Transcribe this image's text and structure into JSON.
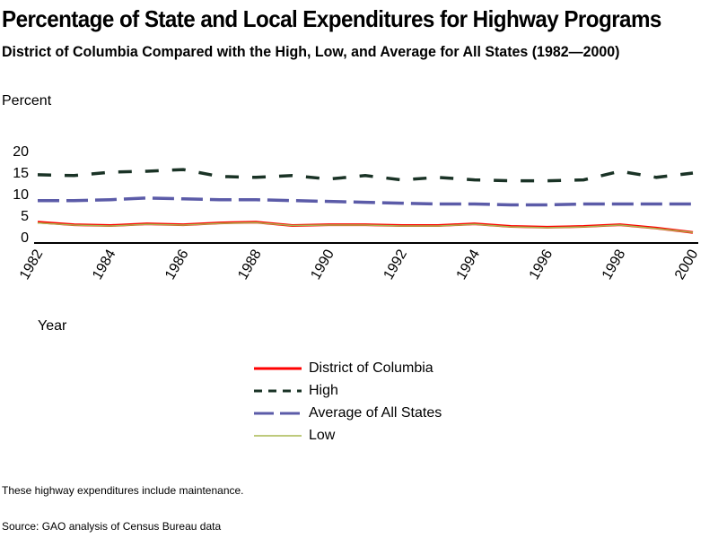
{
  "title": "Percentage of State and Local Expenditures for Highway Programs",
  "subtitle": "District of Columbia Compared with the High, Low, and Average for All States (1982—2000)",
  "note": "These highway expenditures include maintenance.",
  "source": "Source: GAO analysis of Census Bureau data",
  "chart_data": {
    "type": "line",
    "title": "Percentage of State and Local Expenditures for Highway Programs",
    "subtitle": "District of Columbia Compared with the High, Low, and Average for All States (1982—2000)",
    "xlabel": "Year",
    "ylabel": "Percent",
    "ylim": [
      0,
      20
    ],
    "yticks": [
      0,
      5,
      10,
      15,
      20
    ],
    "xlim": [
      1982,
      2000
    ],
    "xticks": [
      "1982",
      "1984",
      "1986",
      "1988",
      "1990",
      "1992",
      "1994",
      "1996",
      "1998",
      "2000"
    ],
    "grid": false,
    "legend_position": "bottom-center",
    "x": [
      1982,
      1983,
      1984,
      1985,
      1986,
      1987,
      1988,
      1989,
      1990,
      1991,
      1992,
      1993,
      1994,
      1995,
      1996,
      1997,
      1998,
      1999,
      2000
    ],
    "series": [
      {
        "name": "District of Columbia",
        "color": "#ff0000",
        "style": "solid",
        "values": [
          3.4,
          2.8,
          2.6,
          3.0,
          2.8,
          3.2,
          3.4,
          2.6,
          2.8,
          2.8,
          2.6,
          2.6,
          3.0,
          2.4,
          2.2,
          2.4,
          2.8,
          2.0,
          1.0
        ]
      },
      {
        "name": "High",
        "color": "#1a3326",
        "style": "short-dash",
        "values": [
          14.4,
          14.2,
          15.0,
          15.2,
          15.6,
          14.0,
          13.8,
          14.2,
          13.4,
          14.2,
          13.2,
          13.8,
          13.2,
          13.0,
          13.0,
          13.2,
          15.2,
          13.8,
          14.8
        ]
      },
      {
        "name": "Average of All States",
        "color": "#5b5ba8",
        "style": "long-dash",
        "values": [
          8.4,
          8.4,
          8.6,
          9.0,
          8.8,
          8.6,
          8.6,
          8.4,
          8.2,
          8.0,
          7.8,
          7.6,
          7.6,
          7.4,
          7.4,
          7.6,
          7.6,
          7.6,
          7.6
        ]
      },
      {
        "name": "Low",
        "color": "#a8b850",
        "style": "solid-thin",
        "values": [
          3.2,
          2.7,
          2.5,
          2.9,
          2.7,
          3.1,
          3.3,
          2.6,
          2.7,
          2.7,
          2.5,
          2.5,
          2.9,
          2.3,
          2.1,
          2.3,
          2.7,
          1.9,
          1.0
        ]
      }
    ]
  }
}
